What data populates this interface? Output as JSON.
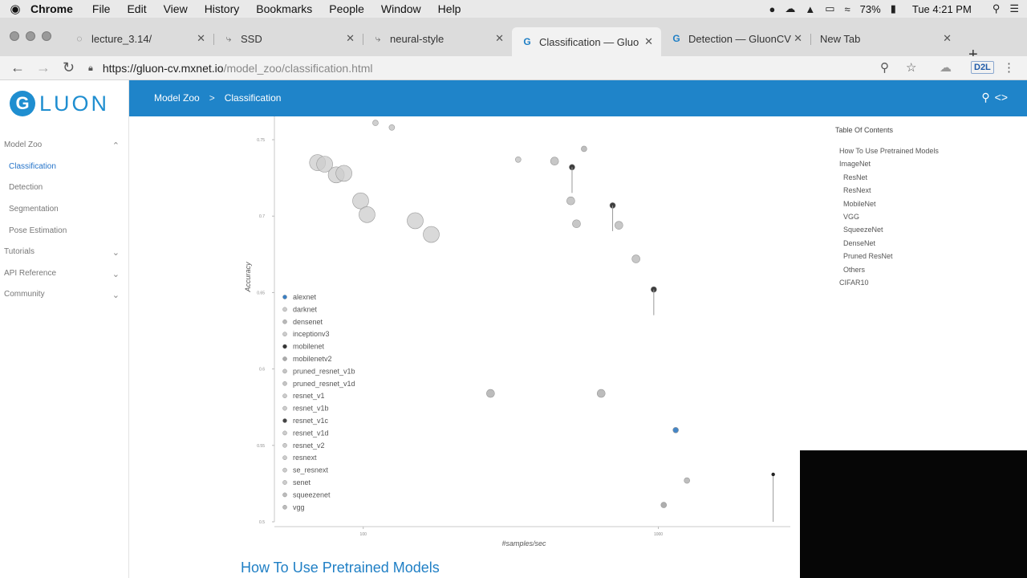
{
  "menubar": {
    "apple_icon": "apple-icon",
    "items": [
      "Chrome",
      "File",
      "Edit",
      "View",
      "History",
      "Bookmarks",
      "People",
      "Window",
      "Help"
    ],
    "battery": "73%",
    "clock": "Tue 4:21 PM"
  },
  "tabs": [
    {
      "title": "lecture_3.14/",
      "icon": "spinner-icon",
      "active": false
    },
    {
      "title": "SSD",
      "icon": "page-icon",
      "active": false
    },
    {
      "title": "neural-style",
      "icon": "page-icon",
      "active": false
    },
    {
      "title": "Classification — Gluo",
      "icon": "gluon-icon",
      "active": true
    },
    {
      "title": "Detection — GluonCV",
      "icon": "gluon-icon",
      "active": false
    },
    {
      "title": "New Tab",
      "icon": "",
      "active": false
    }
  ],
  "address": {
    "host": "https://gluon-cv.mxnet.io",
    "path": "/model_zoo/classification.html"
  },
  "extension_label": "D2L",
  "logo": {
    "letter": "G",
    "word": "LUON"
  },
  "sidebar": {
    "items": [
      {
        "label": "Model Zoo",
        "expandable": true,
        "sub": false,
        "active": false
      },
      {
        "label": "Classification",
        "expandable": false,
        "sub": true,
        "active": true
      },
      {
        "label": "Detection",
        "expandable": false,
        "sub": true,
        "active": false
      },
      {
        "label": "Segmentation",
        "expandable": false,
        "sub": true,
        "active": false
      },
      {
        "label": "Pose Estimation",
        "expandable": false,
        "sub": true,
        "active": false
      },
      {
        "label": "Tutorials",
        "expandable": true,
        "sub": false,
        "active": false
      },
      {
        "label": "API Reference",
        "expandable": true,
        "sub": false,
        "active": false
      },
      {
        "label": "Community",
        "expandable": true,
        "sub": false,
        "active": false
      }
    ]
  },
  "header": {
    "breadcrumb": [
      "Model Zoo",
      "Classification"
    ],
    "separator": ">"
  },
  "toc": {
    "title": "Table Of Contents",
    "items": [
      {
        "label": "How To Use Pretrained Models",
        "level": 1
      },
      {
        "label": "ImageNet",
        "level": 1
      },
      {
        "label": "ResNet",
        "level": 2
      },
      {
        "label": "ResNext",
        "level": 2
      },
      {
        "label": "MobileNet",
        "level": 2
      },
      {
        "label": "VGG",
        "level": 2
      },
      {
        "label": "SqueezeNet",
        "level": 2
      },
      {
        "label": "DenseNet",
        "level": 2
      },
      {
        "label": "Pruned ResNet",
        "level": 2
      },
      {
        "label": "Others",
        "level": 2
      },
      {
        "label": "CIFAR10",
        "level": 1
      }
    ]
  },
  "chart_data": {
    "type": "scatter",
    "xlabel": "#samples/sec",
    "ylabel": "Accuracy",
    "x_scale": "log",
    "xlim": [
      50,
      2800
    ],
    "ylim": [
      0.5,
      0.76
    ],
    "x_ticks": [
      "100",
      "1000"
    ],
    "y_ticks": [
      "0.5",
      "0.55",
      "0.6",
      "0.65",
      "0.7",
      "0.75"
    ],
    "legend_position": "left",
    "series": [
      {
        "name": "alexnet",
        "color": "#3a7fc4",
        "points": [
          [
            1145,
            0.56
          ]
        ]
      },
      {
        "name": "darknet",
        "color": "#cccccc",
        "points": []
      },
      {
        "name": "densenet",
        "color": "#b8b8b8",
        "points": [
          [
            270,
            0.584
          ],
          [
            640,
            0.584
          ]
        ]
      },
      {
        "name": "inceptionv3",
        "color": "#cccccc",
        "points": [
          [
            335,
            0.737
          ]
        ]
      },
      {
        "name": "mobilenet",
        "color": "#333333",
        "points": [
          [
            510,
            0.732
          ],
          [
            700,
            0.707
          ],
          [
            965,
            0.652
          ]
        ]
      },
      {
        "name": "mobilenetv2",
        "color": "#aaaaaa",
        "points": [
          [
            1043,
            0.511
          ]
        ]
      },
      {
        "name": "pruned_resnet_v1b",
        "color": "#c4c4c4",
        "points": [
          [
            735,
            0.694
          ],
          [
            840,
            0.672
          ]
        ]
      },
      {
        "name": "pruned_resnet_v1d",
        "color": "#c4c4c4",
        "points": [
          [
            445,
            0.736
          ],
          [
            505,
            0.71
          ],
          [
            528,
            0.695
          ]
        ]
      },
      {
        "name": "resnet_v1",
        "color": "#cccccc",
        "points": []
      },
      {
        "name": "resnet_v1b",
        "color": "#cccccc",
        "points": []
      },
      {
        "name": "resnet_v1c",
        "color": "#444444",
        "points": []
      },
      {
        "name": "resnet_v1d",
        "color": "#cccccc",
        "points": [
          [
            70,
            0.735
          ],
          [
            74,
            0.734
          ],
          [
            81,
            0.727
          ],
          [
            86,
            0.728
          ],
          [
            98,
            0.71
          ],
          [
            103,
            0.701
          ],
          [
            150,
            0.697
          ],
          [
            170,
            0.688
          ]
        ]
      },
      {
        "name": "resnet_v2",
        "color": "#cccccc",
        "points": []
      },
      {
        "name": "resnext",
        "color": "#cccccc",
        "points": [
          [
            110,
            0.761
          ],
          [
            125,
            0.758
          ]
        ]
      },
      {
        "name": "se_resnext",
        "color": "#cccccc",
        "points": []
      },
      {
        "name": "senet",
        "color": "#cccccc",
        "points": []
      },
      {
        "name": "squeezenet",
        "color": "#bbbbbb",
        "points": [
          [
            1250,
            0.527
          ]
        ]
      },
      {
        "name": "vgg",
        "color": "#bbbbbb",
        "points": [
          [
            560,
            0.744
          ]
        ]
      }
    ]
  }
}
